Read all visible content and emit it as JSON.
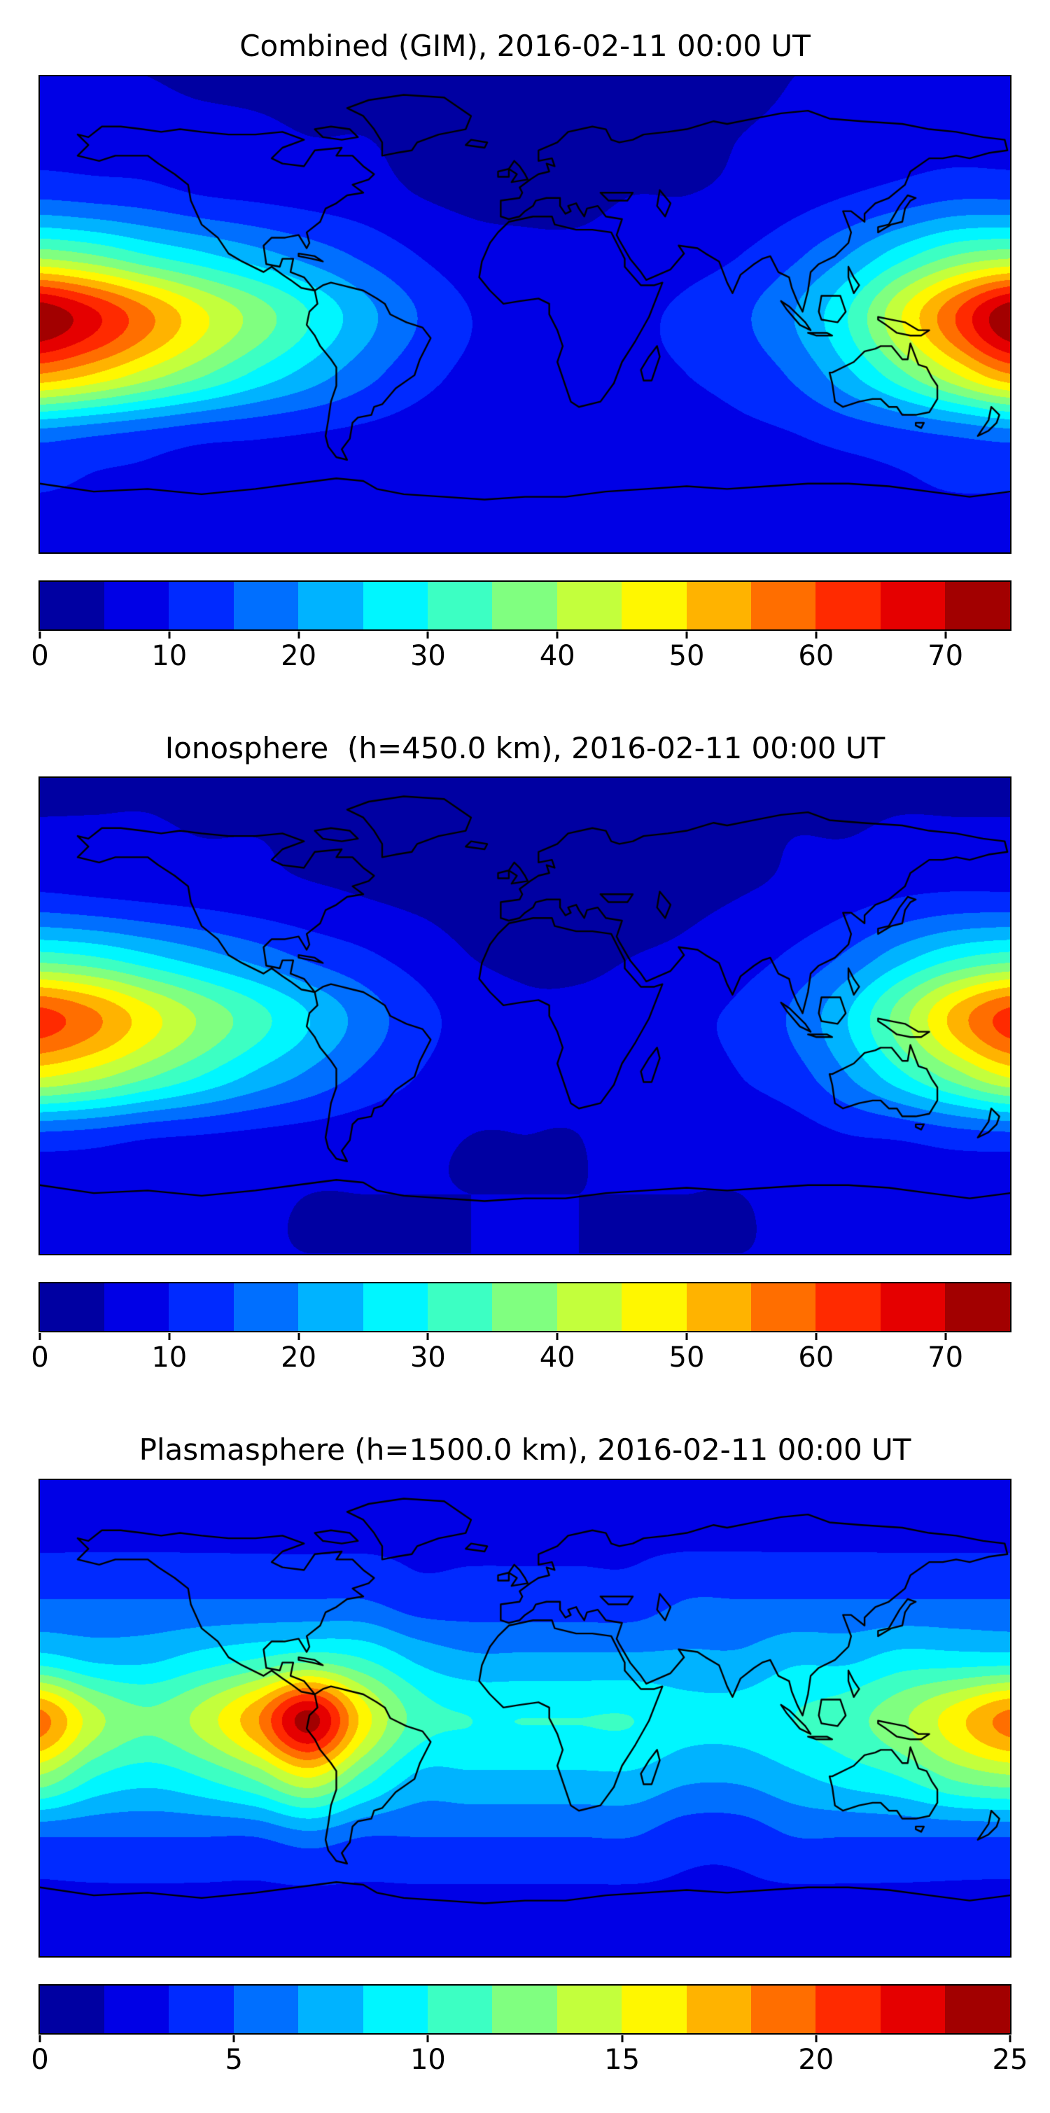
{
  "page": {
    "background": "#ffffff",
    "description": "Three stacked global TEC contour maps with jet colorbars"
  },
  "chart_data": [
    {
      "type": "heatmap",
      "title": "Combined (GIM), 2016-02-11 00:00 UT",
      "projection": "equirectangular world map with coastlines",
      "colormap": "jet",
      "n_levels": 15,
      "lon_range": [
        -180,
        180
      ],
      "lat_range": [
        -90,
        90
      ],
      "value_range": [
        0,
        75
      ],
      "colorbar_ticks": [
        0,
        10,
        20,
        30,
        40,
        50,
        60,
        70
      ],
      "legend_position": "bottom colorbar",
      "grid_lons": [
        -180,
        -160,
        -140,
        -120,
        -100,
        -80,
        -60,
        -40,
        -20,
        0,
        20,
        40,
        60,
        80,
        100,
        120,
        140,
        160,
        180
      ],
      "grid_lats": [
        90,
        67.5,
        45,
        22.5,
        0,
        -22.5,
        -45,
        -67.5,
        -90
      ],
      "values": [
        [
          5,
          5,
          5,
          4,
          4,
          4,
          4,
          3,
          3,
          3,
          3,
          3,
          4,
          4,
          5,
          5,
          5,
          5,
          5
        ],
        [
          8,
          8,
          8,
          7,
          6,
          5,
          5,
          4,
          3,
          3,
          3,
          3,
          4,
          5,
          6,
          7,
          8,
          8,
          8
        ],
        [
          14,
          13,
          12,
          10,
          9,
          8,
          7,
          5,
          4,
          4,
          4,
          5,
          5,
          6,
          8,
          10,
          12,
          14,
          14
        ],
        [
          38,
          35,
          30,
          26,
          22,
          18,
          14,
          10,
          7,
          6,
          6,
          7,
          8,
          10,
          14,
          20,
          28,
          35,
          38
        ],
        [
          74,
          66,
          56,
          46,
          38,
          30,
          22,
          15,
          10,
          8,
          8,
          9,
          11,
          14,
          20,
          30,
          45,
          60,
          74
        ],
        [
          55,
          50,
          43,
          36,
          29,
          23,
          17,
          12,
          9,
          8,
          8,
          9,
          10,
          12,
          16,
          24,
          34,
          45,
          55
        ],
        [
          18,
          16,
          14,
          12,
          11,
          10,
          9,
          8,
          7,
          7,
          7,
          8,
          8,
          9,
          10,
          12,
          14,
          16,
          18
        ],
        [
          10,
          9,
          9,
          8,
          8,
          8,
          7,
          7,
          7,
          7,
          7,
          7,
          7,
          8,
          8,
          8,
          9,
          10,
          10
        ],
        [
          7,
          7,
          7,
          7,
          7,
          7,
          7,
          7,
          7,
          7,
          7,
          7,
          7,
          7,
          7,
          7,
          7,
          7,
          7
        ]
      ]
    },
    {
      "type": "heatmap",
      "title": "Ionosphere  (h=450.0 km), 2016-02-11 00:00 UT",
      "projection": "equirectangular world map with coastlines",
      "colormap": "jet",
      "n_levels": 15,
      "lon_range": [
        -180,
        180
      ],
      "lat_range": [
        -90,
        90
      ],
      "value_range": [
        0,
        75
      ],
      "colorbar_ticks": [
        0,
        10,
        20,
        30,
        40,
        50,
        60,
        70
      ],
      "legend_position": "bottom colorbar",
      "grid_lons": [
        -180,
        -160,
        -140,
        -120,
        -100,
        -80,
        -60,
        -40,
        -20,
        0,
        20,
        40,
        60,
        80,
        100,
        120,
        140,
        160,
        180
      ],
      "grid_lats": [
        90,
        67.5,
        45,
        22.5,
        0,
        -22.5,
        -45,
        -67.5,
        -90
      ],
      "values": [
        [
          4,
          4,
          4,
          3,
          3,
          3,
          3,
          2,
          2,
          2,
          2,
          2,
          3,
          3,
          4,
          4,
          4,
          4,
          4
        ],
        [
          6,
          6,
          6,
          5,
          5,
          4,
          4,
          3,
          2,
          2,
          2,
          2,
          3,
          4,
          5,
          5,
          6,
          6,
          6
        ],
        [
          11,
          10,
          9,
          8,
          7,
          6,
          5,
          4,
          3,
          3,
          3,
          3,
          4,
          5,
          6,
          8,
          10,
          11,
          11
        ],
        [
          32,
          30,
          26,
          22,
          18,
          14,
          11,
          8,
          5,
          4,
          4,
          5,
          6,
          8,
          11,
          16,
          23,
          29,
          32
        ],
        [
          62,
          56,
          47,
          39,
          32,
          25,
          18,
          12,
          8,
          6,
          6,
          7,
          9,
          11,
          16,
          25,
          38,
          52,
          62
        ],
        [
          46,
          42,
          36,
          30,
          24,
          19,
          14,
          10,
          7,
          6,
          6,
          7,
          8,
          10,
          13,
          20,
          29,
          38,
          46
        ],
        [
          14,
          13,
          11,
          10,
          9,
          8,
          7,
          6,
          5,
          5,
          5,
          6,
          6,
          7,
          8,
          10,
          11,
          13,
          14
        ],
        [
          7,
          7,
          6,
          6,
          6,
          5,
          5,
          5,
          5,
          5,
          5,
          5,
          5,
          5,
          6,
          6,
          7,
          7,
          7
        ],
        [
          5,
          5,
          5,
          5,
          5,
          5,
          5,
          5,
          5,
          5,
          5,
          5,
          5,
          5,
          5,
          5,
          5,
          5,
          5
        ]
      ]
    },
    {
      "type": "heatmap",
      "title": "Plasmasphere (h=1500.0 km), 2016-02-11 00:00 UT",
      "projection": "equirectangular world map with coastlines",
      "colormap": "jet",
      "n_levels": 15,
      "lon_range": [
        -180,
        180
      ],
      "lat_range": [
        -90,
        90
      ],
      "value_range": [
        0,
        25
      ],
      "colorbar_ticks": [
        0,
        5,
        10,
        15,
        20,
        25
      ],
      "legend_position": "bottom colorbar",
      "grid_lons": [
        -180,
        -160,
        -140,
        -120,
        -100,
        -80,
        -60,
        -40,
        -20,
        0,
        20,
        40,
        60,
        80,
        100,
        120,
        140,
        160,
        180
      ],
      "grid_lats": [
        90,
        67.5,
        45,
        22.5,
        0,
        -22.5,
        -45,
        -67.5,
        -90
      ],
      "values": [
        [
          2,
          2,
          2,
          2,
          2,
          2,
          2,
          2,
          2,
          2,
          2,
          2,
          2,
          2,
          2,
          2,
          2,
          2,
          2
        ],
        [
          3,
          3,
          3,
          3,
          3,
          3,
          3,
          3,
          3,
          3,
          3,
          3,
          3,
          3,
          3,
          3,
          3,
          3,
          3
        ],
        [
          5,
          5,
          5,
          5,
          5,
          5,
          5,
          4,
          4,
          4,
          4,
          4,
          5,
          5,
          5,
          5,
          5,
          5,
          5
        ],
        [
          9,
          8,
          8,
          9,
          10,
          11,
          10,
          8,
          7,
          7,
          7,
          7,
          7,
          7,
          8,
          8,
          9,
          9,
          9
        ],
        [
          19,
          14,
          12,
          14,
          18,
          24,
          16,
          11,
          10,
          10,
          10,
          10,
          9,
          9,
          10,
          11,
          13,
          16,
          19
        ],
        [
          13,
          10,
          9,
          10,
          12,
          15,
          11,
          8,
          8,
          8,
          8,
          8,
          7,
          7,
          8,
          9,
          10,
          12,
          13
        ],
        [
          5,
          5,
          5,
          5,
          5,
          6,
          5,
          5,
          5,
          5,
          5,
          5,
          4,
          4,
          5,
          5,
          5,
          5,
          5
        ],
        [
          3,
          3,
          3,
          3,
          3,
          3,
          3,
          3,
          3,
          3,
          3,
          3,
          3,
          3,
          3,
          3,
          3,
          3,
          3
        ],
        [
          2,
          2,
          2,
          2,
          2,
          2,
          2,
          2,
          2,
          2,
          2,
          2,
          2,
          2,
          2,
          2,
          2,
          2,
          2
        ]
      ]
    }
  ]
}
